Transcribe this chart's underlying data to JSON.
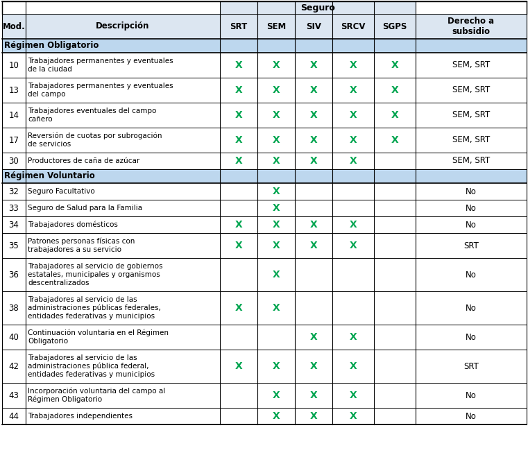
{
  "col_headers": [
    "Mod.",
    "Descripción",
    "SRT",
    "SEM",
    "SIV",
    "SRCV",
    "SGPS",
    "Derecho a\nsubsidio"
  ],
  "section_obligatorio": "Régimen Obligatorio",
  "section_voluntario": "Régimen Voluntario",
  "rows": [
    {
      "mod": "10",
      "desc": "Trabajadores permanentes y eventuales\nde la ciudad",
      "SRT": true,
      "SEM": true,
      "SIV": true,
      "SRCV": true,
      "SGPS": true,
      "subsidio": "SEM, SRT",
      "section": "obligatorio"
    },
    {
      "mod": "13",
      "desc": "Trabajadores permanentes y eventuales\ndel campo",
      "SRT": true,
      "SEM": true,
      "SIV": true,
      "SRCV": true,
      "SGPS": true,
      "subsidio": "SEM, SRT",
      "section": "obligatorio"
    },
    {
      "mod": "14",
      "desc": "Trabajadores eventuales del campo\ncañero",
      "SRT": true,
      "SEM": true,
      "SIV": true,
      "SRCV": true,
      "SGPS": true,
      "subsidio": "SEM, SRT",
      "section": "obligatorio"
    },
    {
      "mod": "17",
      "desc": "Reversión de cuotas por subrogación\nde servicios",
      "SRT": true,
      "SEM": true,
      "SIV": true,
      "SRCV": true,
      "SGPS": true,
      "subsidio": "SEM, SRT",
      "section": "obligatorio"
    },
    {
      "mod": "30",
      "desc": "Productores de caña de azúcar",
      "SRT": true,
      "SEM": true,
      "SIV": true,
      "SRCV": true,
      "SGPS": false,
      "subsidio": "SEM, SRT",
      "section": "obligatorio"
    },
    {
      "mod": "32",
      "desc": "Seguro Facultativo",
      "SRT": false,
      "SEM": true,
      "SIV": false,
      "SRCV": false,
      "SGPS": false,
      "subsidio": "No",
      "section": "voluntario"
    },
    {
      "mod": "33",
      "desc": "Seguro de Salud para la Familia",
      "SRT": false,
      "SEM": true,
      "SIV": false,
      "SRCV": false,
      "SGPS": false,
      "subsidio": "No",
      "section": "voluntario"
    },
    {
      "mod": "34",
      "desc": "Trabajadores domésticos",
      "SRT": true,
      "SEM": true,
      "SIV": true,
      "SRCV": true,
      "SGPS": false,
      "subsidio": "No",
      "section": "voluntario"
    },
    {
      "mod": "35",
      "desc": "Patrones personas físicas con\ntrabajadores a su servicio",
      "SRT": true,
      "SEM": true,
      "SIV": true,
      "SRCV": true,
      "SGPS": false,
      "subsidio": "SRT",
      "section": "voluntario"
    },
    {
      "mod": "36",
      "desc": "Trabajadores al servicio de gobiernos\nestatales, municipales y organismos\ndescentralizados",
      "SRT": false,
      "SEM": true,
      "SIV": false,
      "SRCV": false,
      "SGPS": false,
      "subsidio": "No",
      "section": "voluntario"
    },
    {
      "mod": "38",
      "desc": "Trabajadores al servicio de las\nadministraciones públicas federales,\nentidades federativas y municipios",
      "SRT": true,
      "SEM": true,
      "SIV": false,
      "SRCV": false,
      "SGPS": false,
      "subsidio": "No",
      "section": "voluntario"
    },
    {
      "mod": "40",
      "desc": "Continuación voluntaria en el Régimen\nObligatorio",
      "SRT": false,
      "SEM": false,
      "SIV": true,
      "SRCV": true,
      "SGPS": false,
      "subsidio": "No",
      "section": "voluntario"
    },
    {
      "mod": "42",
      "desc": "Trabajadores al servicio de las\nadministraciones pública federal,\nentidades federativas y municipios",
      "SRT": true,
      "SEM": true,
      "SIV": true,
      "SRCV": true,
      "SGPS": false,
      "subsidio": "SRT",
      "section": "voluntario"
    },
    {
      "mod": "43",
      "desc": "Incorporación voluntaria del campo al\nRégimen Obligatorio",
      "SRT": false,
      "SEM": true,
      "SIV": true,
      "SRCV": true,
      "SGPS": false,
      "subsidio": "No",
      "section": "voluntario"
    },
    {
      "mod": "44",
      "desc": "Trabajadores independientes",
      "SRT": false,
      "SEM": true,
      "SIV": true,
      "SRCV": true,
      "SGPS": false,
      "subsidio": "No",
      "section": "voluntario"
    }
  ],
  "green_x_color": "#00a550",
  "header_bg_color": "#dce6f1",
  "section_bg_color": "#bdd7ee",
  "row_heights": {
    "seguro_hdr": 18,
    "col_hdr": 36,
    "section": 20,
    "1line": 24,
    "2line": 36,
    "3line": 48
  }
}
